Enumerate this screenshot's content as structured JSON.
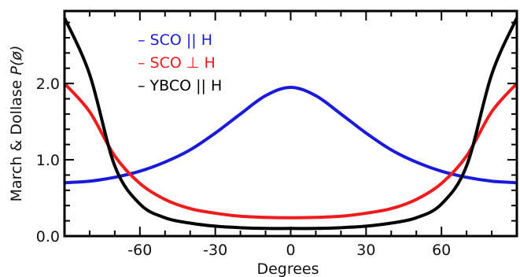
{
  "chart_data": {
    "type": "line",
    "xlabel": "Degrees",
    "ylabel_main": "March & Dollase ",
    "ylabel_sym": "P(ø)",
    "xlim": [
      -90,
      90
    ],
    "ylim": [
      0.0,
      2.95
    ],
    "x_ticks": [
      {
        "value": -60,
        "label": "-60"
      },
      {
        "value": -30,
        "label": "-30"
      },
      {
        "value": 0,
        "label": "0"
      },
      {
        "value": 30,
        "label": "30"
      },
      {
        "value": 60,
        "label": "60"
      }
    ],
    "y_ticks": [
      {
        "value": 0.0,
        "label": "0.0"
      },
      {
        "value": 1.0,
        "label": "1.0"
      },
      {
        "value": 2.0,
        "label": "2.0"
      }
    ],
    "legend_position": "top-left",
    "series": [
      {
        "name": "– SCO || H",
        "color": "#1a1adb",
        "r": 0.8,
        "x": [
          -90,
          -80,
          -70,
          -60,
          -50,
          -40,
          -30,
          -20,
          -10,
          0,
          10,
          20,
          30,
          40,
          50,
          60,
          70,
          80,
          90
        ],
        "y": [
          0.7,
          0.72,
          0.77,
          0.85,
          0.97,
          1.13,
          1.35,
          1.6,
          1.84,
          1.95,
          1.84,
          1.6,
          1.35,
          1.13,
          0.97,
          0.85,
          0.77,
          0.72,
          0.7
        ]
      },
      {
        "name": "– SCO ⊥ H",
        "color": "#ee1c1c",
        "r": 0.5,
        "x": [
          -90,
          -80,
          -70,
          -60,
          -50,
          -40,
          -30,
          -20,
          -10,
          0,
          10,
          20,
          30,
          40,
          50,
          60,
          70,
          80,
          90
        ],
        "y": [
          2.0,
          1.63,
          1.05,
          0.69,
          0.48,
          0.36,
          0.3,
          0.26,
          0.245,
          0.24,
          0.245,
          0.26,
          0.3,
          0.36,
          0.48,
          0.69,
          1.05,
          1.63,
          2.0
        ]
      },
      {
        "name": "– YBCO || H",
        "color": "#000000",
        "r": 0.35,
        "x": [
          -90,
          -80,
          -70,
          -60,
          -50,
          -40,
          -30,
          -20,
          -10,
          0,
          10,
          20,
          30,
          40,
          50,
          60,
          70,
          80,
          90
        ],
        "y": [
          2.86,
          2.12,
          0.92,
          0.42,
          0.24,
          0.17,
          0.13,
          0.11,
          0.1,
          0.1,
          0.1,
          0.11,
          0.13,
          0.17,
          0.24,
          0.42,
          0.92,
          2.12,
          2.86
        ]
      }
    ]
  }
}
